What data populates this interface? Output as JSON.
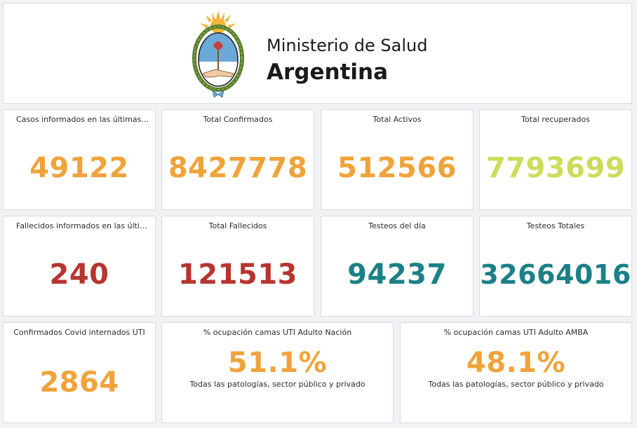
{
  "header": {
    "title_line1": "Ministerio de Salud",
    "title_line2": "Argentina",
    "logo": "coat-of-arms-argentina"
  },
  "colors": {
    "orange": "#f0a33a",
    "lime": "#cddc5a",
    "red": "#b7352f",
    "teal": "#1b8087"
  },
  "cards": {
    "casos_24h": {
      "title": "Casos informados en las últimas 2...",
      "value": "49122"
    },
    "total_confirmados": {
      "title": "Total Confirmados",
      "value": "8427778"
    },
    "total_activos": {
      "title": "Total Activos",
      "value": "512566"
    },
    "total_recuperados": {
      "title": "Total recuperados",
      "value": "7793699"
    },
    "fallecidos_24h": {
      "title": "Fallecidos informados en las últim...",
      "value": "240"
    },
    "total_fallecidos": {
      "title": "Total Fallecidos",
      "value": "121513"
    },
    "testeos_dia": {
      "title": "Testeos del día",
      "value": "94237"
    },
    "testeos_totales": {
      "title": "Testeos Totales",
      "value": "32664016"
    },
    "internados_uti": {
      "title": "Confirmados Covid internados UTI",
      "value": "2864"
    },
    "ocupacion_nacion": {
      "title": "% ocupación camas UTI Adulto Nación",
      "value": "51.1%",
      "subtitle": "Todas las patologías, sector público y privado"
    },
    "ocupacion_amba": {
      "title": "% ocupación camas UTI Adulto AMBA",
      "value": "48.1%",
      "subtitle": "Todas las patologías, sector público y privado"
    }
  }
}
